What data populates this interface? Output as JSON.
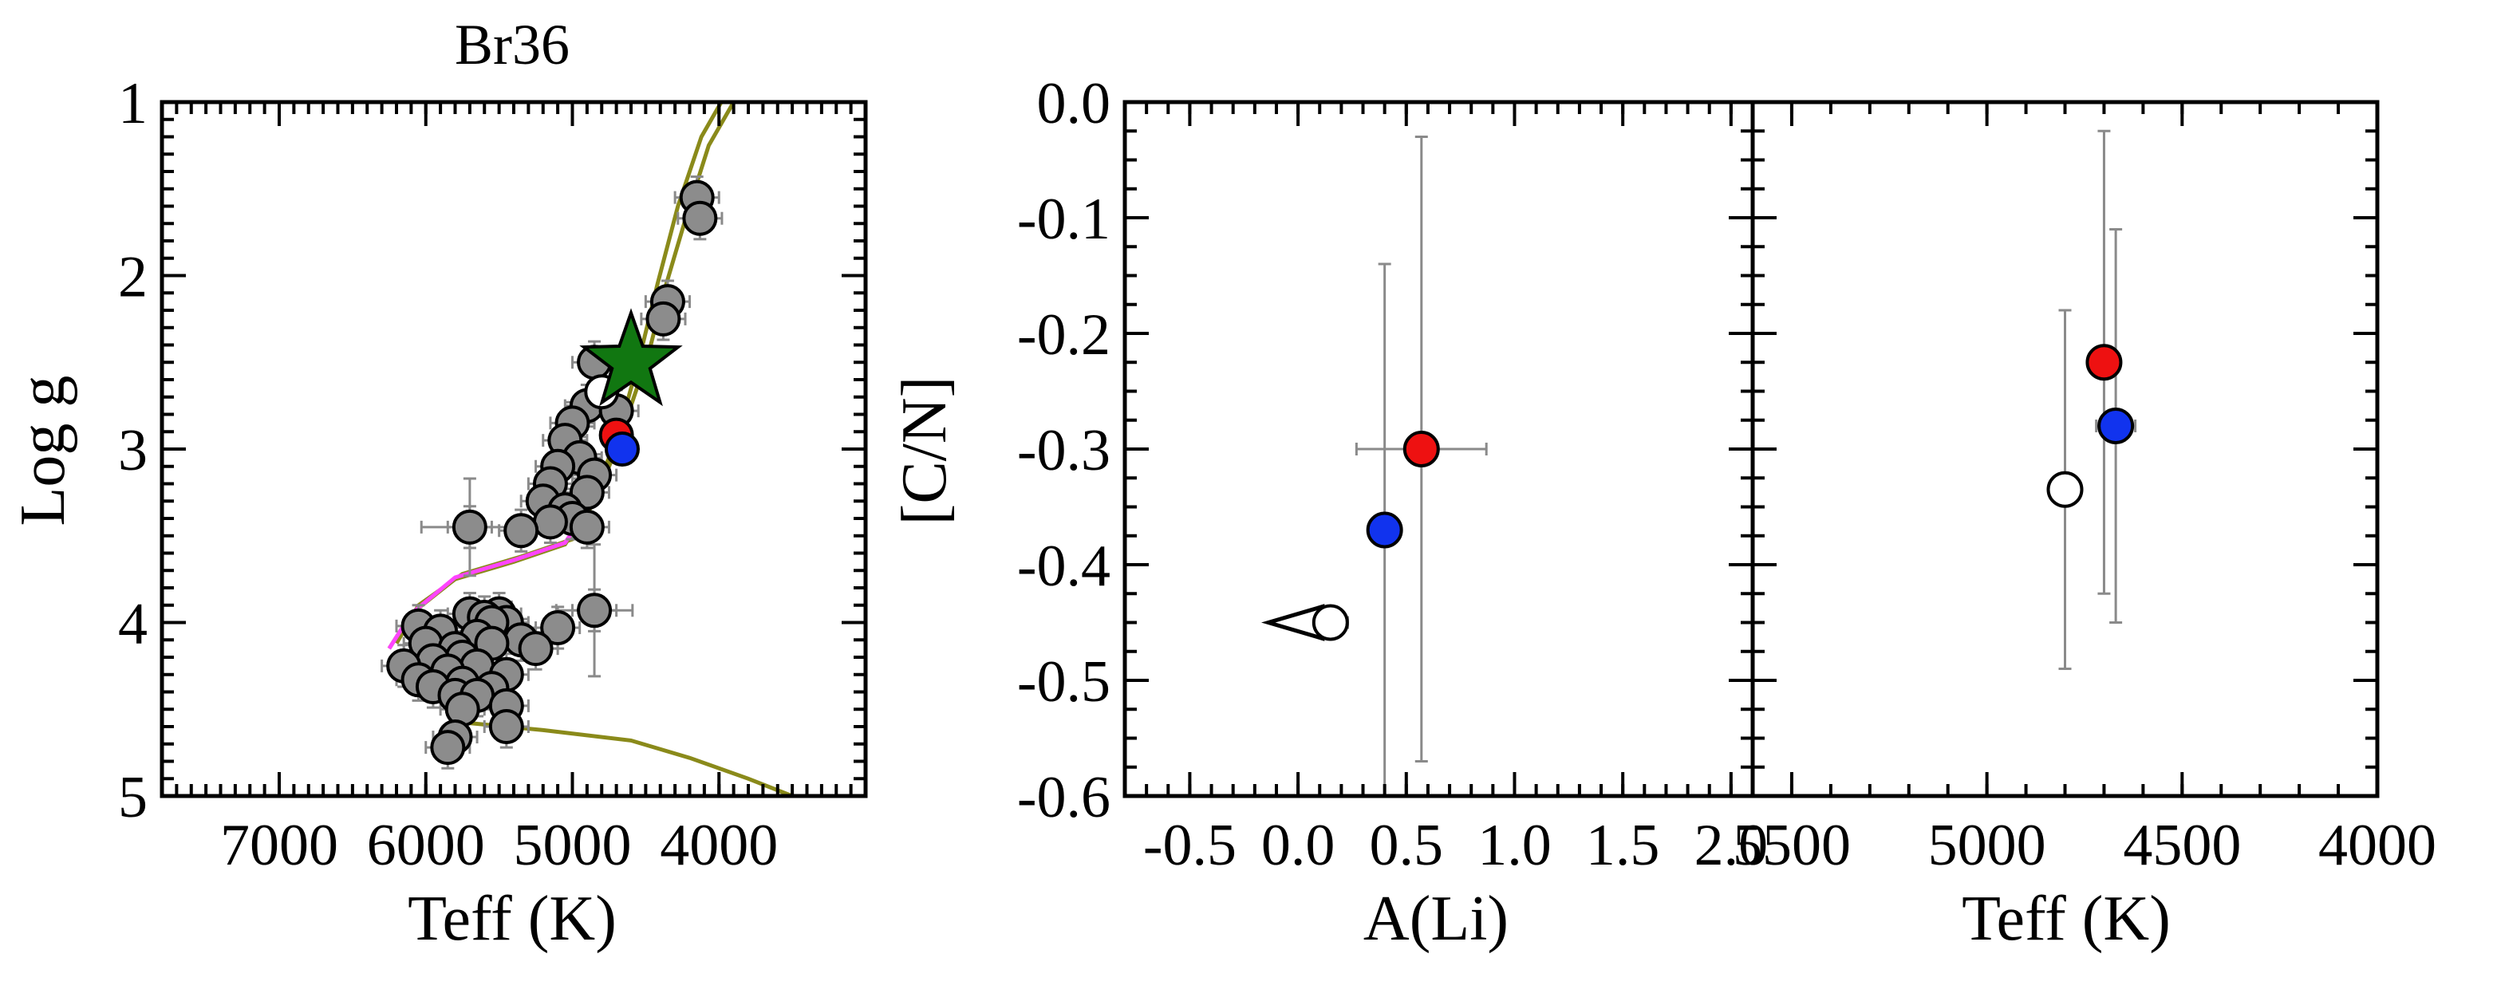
{
  "chart_data": [
    {
      "type": "scatter",
      "title": "Br36",
      "xlabel": "Teff (K)",
      "ylabel": "Log g",
      "xlim": [
        7800,
        3000
      ],
      "ylim": [
        5,
        1
      ],
      "xticks": [
        7000,
        6000,
        5000,
        4000
      ],
      "yticks": [
        1,
        2,
        3,
        4,
        5
      ],
      "x_minor_step": 100,
      "y_minor_step": 0.1,
      "isochrones": [
        {
          "color": "#8a8a1a",
          "points": [
            [
              5700,
              4.58
            ],
            [
              5200,
              4.62
            ],
            [
              4600,
              4.68
            ],
            [
              4200,
              4.78
            ],
            [
              3800,
              4.9
            ],
            [
              3500,
              5.0
            ]
          ]
        },
        {
          "color": "#8a8a1a",
          "points": [
            [
              6250,
              4.15
            ],
            [
              6100,
              3.95
            ],
            [
              5800,
              3.75
            ],
            [
              5400,
              3.65
            ],
            [
              5050,
              3.55
            ],
            [
              4900,
              3.35
            ],
            [
              4750,
              3.05
            ],
            [
              4650,
              2.8
            ],
            [
              4550,
              2.5
            ],
            [
              4420,
              2.05
            ],
            [
              4280,
              1.6
            ],
            [
              4120,
              1.2
            ],
            [
              3950,
              0.95
            ]
          ]
        },
        {
          "color": "#8a8a1a",
          "points": [
            [
              6200,
              4.12
            ],
            [
              6050,
              3.9
            ],
            [
              5750,
              3.72
            ],
            [
              5350,
              3.62
            ],
            [
              5000,
              3.52
            ],
            [
              4850,
              3.3
            ],
            [
              4700,
              3.0
            ],
            [
              4600,
              2.75
            ],
            [
              4480,
              2.45
            ],
            [
              4360,
              2.05
            ],
            [
              4220,
              1.65
            ],
            [
              4070,
              1.25
            ],
            [
              3900,
              1.0
            ]
          ]
        },
        {
          "color": "#ff44ff",
          "points": [
            [
              6250,
              4.15
            ],
            [
              6100,
              3.95
            ],
            [
              5800,
              3.74
            ],
            [
              5400,
              3.64
            ],
            [
              5050,
              3.54
            ],
            [
              4900,
              3.35
            ]
          ]
        }
      ],
      "members": [
        {
          "x": 4150,
          "y": 1.55
        },
        {
          "x": 4130,
          "y": 1.67
        },
        {
          "x": 4350,
          "y": 2.15
        },
        {
          "x": 4380,
          "y": 2.25
        },
        {
          "x": 4850,
          "y": 2.5
        },
        {
          "x": 4900,
          "y": 2.75
        },
        {
          "x": 4700,
          "y": 2.78
        },
        {
          "x": 5000,
          "y": 2.85
        },
        {
          "x": 5050,
          "y": 2.95
        },
        {
          "x": 4950,
          "y": 3.05
        },
        {
          "x": 5100,
          "y": 3.1
        },
        {
          "x": 4850,
          "y": 3.15
        },
        {
          "x": 5150,
          "y": 3.2
        },
        {
          "x": 4900,
          "y": 3.25
        },
        {
          "x": 5200,
          "y": 3.3
        },
        {
          "x": 5050,
          "y": 3.35
        },
        {
          "x": 5000,
          "y": 3.4
        },
        {
          "x": 5150,
          "y": 3.42
        },
        {
          "x": 4900,
          "y": 3.45
        },
        {
          "x": 5350,
          "y": 3.47
        },
        {
          "x": 5700,
          "y": 3.45
        },
        {
          "x": 4850,
          "y": 3.93
        },
        {
          "x": 5700,
          "y": 3.95
        },
        {
          "x": 5500,
          "y": 3.95
        },
        {
          "x": 5600,
          "y": 3.97
        },
        {
          "x": 5450,
          "y": 4.0
        },
        {
          "x": 5550,
          "y": 4.0
        },
        {
          "x": 5100,
          "y": 4.03
        },
        {
          "x": 6050,
          "y": 4.02
        },
        {
          "x": 5900,
          "y": 4.05
        },
        {
          "x": 5650,
          "y": 4.08
        },
        {
          "x": 5350,
          "y": 4.1
        },
        {
          "x": 6000,
          "y": 4.12
        },
        {
          "x": 5800,
          "y": 4.15
        },
        {
          "x": 5550,
          "y": 4.12
        },
        {
          "x": 5250,
          "y": 4.15
        },
        {
          "x": 5750,
          "y": 4.2
        },
        {
          "x": 5950,
          "y": 4.22
        },
        {
          "x": 6150,
          "y": 4.25
        },
        {
          "x": 5650,
          "y": 4.25
        },
        {
          "x": 5850,
          "y": 4.28
        },
        {
          "x": 5450,
          "y": 4.3
        },
        {
          "x": 6050,
          "y": 4.33
        },
        {
          "x": 5750,
          "y": 4.35
        },
        {
          "x": 5950,
          "y": 4.37
        },
        {
          "x": 5550,
          "y": 4.38
        },
        {
          "x": 5800,
          "y": 4.42
        },
        {
          "x": 5650,
          "y": 4.42
        },
        {
          "x": 5450,
          "y": 4.48
        },
        {
          "x": 5750,
          "y": 4.5
        },
        {
          "x": 5450,
          "y": 4.6
        },
        {
          "x": 5800,
          "y": 4.66
        },
        {
          "x": 5850,
          "y": 4.72
        }
      ],
      "member_error": {
        "x": 150,
        "y": 0.12
      },
      "outlier_errors": [
        {
          "x": 5700,
          "y": 3.45,
          "ex": 330,
          "ey": 0.28
        },
        {
          "x": 4850,
          "y": 3.93,
          "ex": 260,
          "ey": 0.38
        }
      ],
      "highlighted": [
        {
          "name": "red",
          "x": 4700,
          "y": 2.92,
          "color": "#ee1111"
        },
        {
          "name": "blue",
          "x": 4660,
          "y": 3.0,
          "color": "#1133ee"
        },
        {
          "name": "white",
          "x": 4800,
          "y": 2.67,
          "color": "#ffffff"
        }
      ],
      "star": {
        "x": 4600,
        "y": 2.5,
        "color": "#117711"
      }
    },
    {
      "type": "scatter",
      "xlabel": "A(Li)",
      "ylabel": "[C/N]",
      "xlim": [
        -0.8,
        2.1
      ],
      "ylim": [
        -0.6,
        0.0
      ],
      "xticks": [
        -0.5,
        0.0,
        0.5,
        1.0,
        1.5,
        2.0
      ],
      "xtick_labels": [
        "-0.5",
        "0.0",
        "0.5",
        "1.0",
        "1.5",
        "2.0"
      ],
      "yticks": [
        0.0,
        -0.1,
        -0.2,
        -0.3,
        -0.4,
        -0.5,
        -0.6
      ],
      "ytick_labels": [
        "0.0",
        "-0.1",
        "-0.2",
        "-0.3",
        "-0.4",
        "-0.5",
        "-0.6"
      ],
      "x_minor_step": 0.1,
      "y_minor_step": 0.025,
      "points": [
        {
          "name": "red",
          "x": 0.57,
          "y": -0.3,
          "ex": 0.3,
          "ey": 0.27,
          "color": "#ee1111"
        },
        {
          "name": "blue",
          "x": 0.4,
          "y": -0.37,
          "ex": 0.0,
          "ey": 0.23,
          "color": "#1133ee"
        },
        {
          "name": "white",
          "x": 0.15,
          "y": -0.45,
          "ex": 0.08,
          "ey": 0.0,
          "color": "#ffffff",
          "upper_limit": true
        }
      ]
    },
    {
      "type": "scatter",
      "xlabel": "Teff (K)",
      "xlim": [
        5600,
        4000
      ],
      "ylim": [
        -0.6,
        0.0
      ],
      "xticks": [
        5500,
        5000,
        4500,
        4000
      ],
      "x_minor_step": 100,
      "y_minor_step": 0.025,
      "points": [
        {
          "name": "red",
          "x": 4700,
          "y": -0.225,
          "ex": 0.0,
          "ey": 0.2,
          "color": "#ee1111"
        },
        {
          "name": "blue",
          "x": 4670,
          "y": -0.28,
          "ex": 50,
          "ey": 0.17,
          "color": "#1133ee"
        },
        {
          "name": "white",
          "x": 4800,
          "y": -0.335,
          "ex": 0.0,
          "ey": 0.155,
          "color": "#ffffff"
        }
      ]
    }
  ]
}
